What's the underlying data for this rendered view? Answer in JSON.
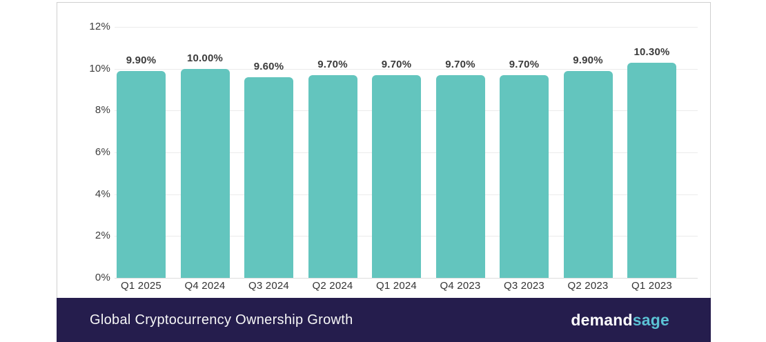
{
  "chart_data": {
    "type": "bar",
    "title": "Global Cryptocurrency Ownership Growth",
    "categories": [
      "Q1 2025",
      "Q4 2024",
      "Q3 2024",
      "Q2 2024",
      "Q1 2024",
      "Q4 2023",
      "Q3 2023",
      "Q2 2023",
      "Q1 2023"
    ],
    "values": [
      9.9,
      10.0,
      9.6,
      9.7,
      9.7,
      9.7,
      9.7,
      9.9,
      10.3
    ],
    "value_labels": [
      "9.90%",
      "10.00%",
      "9.60%",
      "9.70%",
      "9.70%",
      "9.70%",
      "9.70%",
      "9.90%",
      "10.30%"
    ],
    "yticks": [
      "12%",
      "10%",
      "8%",
      "6%",
      "4%",
      "2%",
      "0%"
    ],
    "ylim": [
      0,
      12
    ],
    "xlabel": "",
    "ylabel": "",
    "grid": true,
    "legend_position": "none",
    "bar_color": "#63C5BE"
  },
  "footer": {
    "title": "Global Cryptocurrency Ownership Growth",
    "background_color": "#251D4D",
    "logo": {
      "text_primary": "demand",
      "text_accent": "sage",
      "accent_color": "#5BC2D4"
    }
  }
}
